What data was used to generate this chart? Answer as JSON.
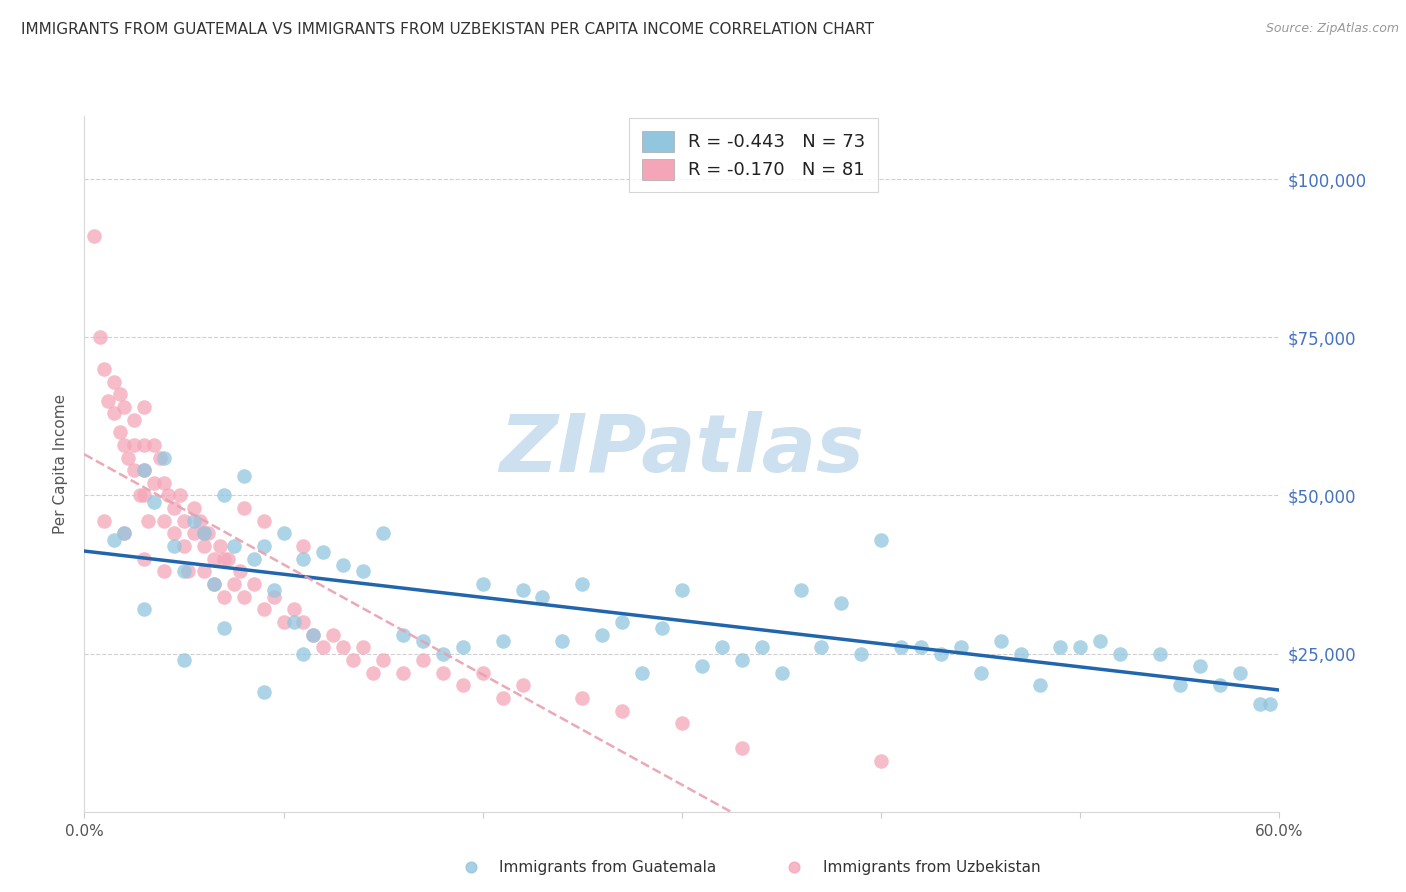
{
  "title": "IMMIGRANTS FROM GUATEMALA VS IMMIGRANTS FROM UZBEKISTAN PER CAPITA INCOME CORRELATION CHART",
  "source": "Source: ZipAtlas.com",
  "ylabel": "Per Capita Income",
  "xlim": [
    0.0,
    0.6
  ],
  "ylim": [
    0,
    110000
  ],
  "yticks": [
    0,
    25000,
    50000,
    75000,
    100000
  ],
  "ytick_labels": [
    "",
    "$25,000",
    "$50,000",
    "$75,000",
    "$100,000"
  ],
  "xticks": [
    0.0,
    0.1,
    0.2,
    0.3,
    0.4,
    0.5,
    0.6
  ],
  "xtick_labels": [
    "0.0%",
    "",
    "",
    "",
    "",
    "",
    "60.0%"
  ],
  "blue_R": -0.443,
  "blue_N": 73,
  "pink_R": -0.17,
  "pink_N": 81,
  "blue_color": "#92c5de",
  "pink_color": "#f4a6b8",
  "blue_line_color": "#2166ac",
  "pink_line_color": "#e8a0b0",
  "title_fontsize": 11,
  "watermark": "ZIPatlas",
  "watermark_color": "#cce0f0",
  "background_color": "#ffffff",
  "grid_color": "#d0d0d0",
  "right_tick_color": "#4472c4",
  "legend_label_blue": "Immigrants from Guatemala",
  "legend_label_pink": "Immigrants from Uzbekistan",
  "blue_x": [
    0.015,
    0.02,
    0.03,
    0.035,
    0.04,
    0.045,
    0.05,
    0.055,
    0.06,
    0.065,
    0.07,
    0.075,
    0.08,
    0.085,
    0.09,
    0.095,
    0.1,
    0.105,
    0.11,
    0.115,
    0.12,
    0.13,
    0.14,
    0.15,
    0.16,
    0.17,
    0.18,
    0.19,
    0.2,
    0.21,
    0.22,
    0.23,
    0.24,
    0.25,
    0.26,
    0.27,
    0.28,
    0.29,
    0.3,
    0.31,
    0.32,
    0.33,
    0.34,
    0.35,
    0.36,
    0.37,
    0.38,
    0.39,
    0.4,
    0.41,
    0.42,
    0.43,
    0.44,
    0.45,
    0.46,
    0.47,
    0.48,
    0.49,
    0.5,
    0.51,
    0.52,
    0.54,
    0.55,
    0.56,
    0.57,
    0.58,
    0.59,
    0.595,
    0.03,
    0.05,
    0.07,
    0.09,
    0.11
  ],
  "blue_y": [
    43000,
    44000,
    54000,
    49000,
    56000,
    42000,
    38000,
    46000,
    44000,
    36000,
    50000,
    42000,
    53000,
    40000,
    42000,
    35000,
    44000,
    30000,
    40000,
    28000,
    41000,
    39000,
    38000,
    44000,
    28000,
    27000,
    25000,
    26000,
    36000,
    27000,
    35000,
    34000,
    27000,
    36000,
    28000,
    30000,
    22000,
    29000,
    35000,
    23000,
    26000,
    24000,
    26000,
    22000,
    35000,
    26000,
    33000,
    25000,
    43000,
    26000,
    26000,
    25000,
    26000,
    22000,
    27000,
    25000,
    20000,
    26000,
    26000,
    27000,
    25000,
    25000,
    20000,
    23000,
    20000,
    22000,
    17000,
    17000,
    32000,
    24000,
    29000,
    19000,
    25000
  ],
  "pink_x": [
    0.005,
    0.008,
    0.01,
    0.012,
    0.015,
    0.015,
    0.018,
    0.018,
    0.02,
    0.02,
    0.022,
    0.025,
    0.025,
    0.025,
    0.028,
    0.03,
    0.03,
    0.03,
    0.03,
    0.032,
    0.035,
    0.035,
    0.038,
    0.04,
    0.04,
    0.042,
    0.045,
    0.045,
    0.048,
    0.05,
    0.05,
    0.052,
    0.055,
    0.055,
    0.058,
    0.06,
    0.06,
    0.062,
    0.065,
    0.065,
    0.068,
    0.07,
    0.07,
    0.072,
    0.075,
    0.078,
    0.08,
    0.085,
    0.09,
    0.095,
    0.1,
    0.105,
    0.11,
    0.115,
    0.12,
    0.125,
    0.13,
    0.135,
    0.14,
    0.145,
    0.15,
    0.16,
    0.17,
    0.18,
    0.19,
    0.2,
    0.21,
    0.22,
    0.25,
    0.27,
    0.3,
    0.33,
    0.01,
    0.02,
    0.03,
    0.04,
    0.06,
    0.08,
    0.09,
    0.11,
    0.4
  ],
  "pink_y": [
    91000,
    75000,
    70000,
    65000,
    68000,
    63000,
    66000,
    60000,
    64000,
    58000,
    56000,
    62000,
    58000,
    54000,
    50000,
    64000,
    58000,
    54000,
    50000,
    46000,
    58000,
    52000,
    56000,
    52000,
    46000,
    50000,
    48000,
    44000,
    50000,
    46000,
    42000,
    38000,
    48000,
    44000,
    46000,
    42000,
    38000,
    44000,
    40000,
    36000,
    42000,
    40000,
    34000,
    40000,
    36000,
    38000,
    34000,
    36000,
    32000,
    34000,
    30000,
    32000,
    30000,
    28000,
    26000,
    28000,
    26000,
    24000,
    26000,
    22000,
    24000,
    22000,
    24000,
    22000,
    20000,
    22000,
    18000,
    20000,
    18000,
    16000,
    14000,
    10000,
    46000,
    44000,
    40000,
    38000,
    44000,
    48000,
    46000,
    42000,
    8000
  ]
}
